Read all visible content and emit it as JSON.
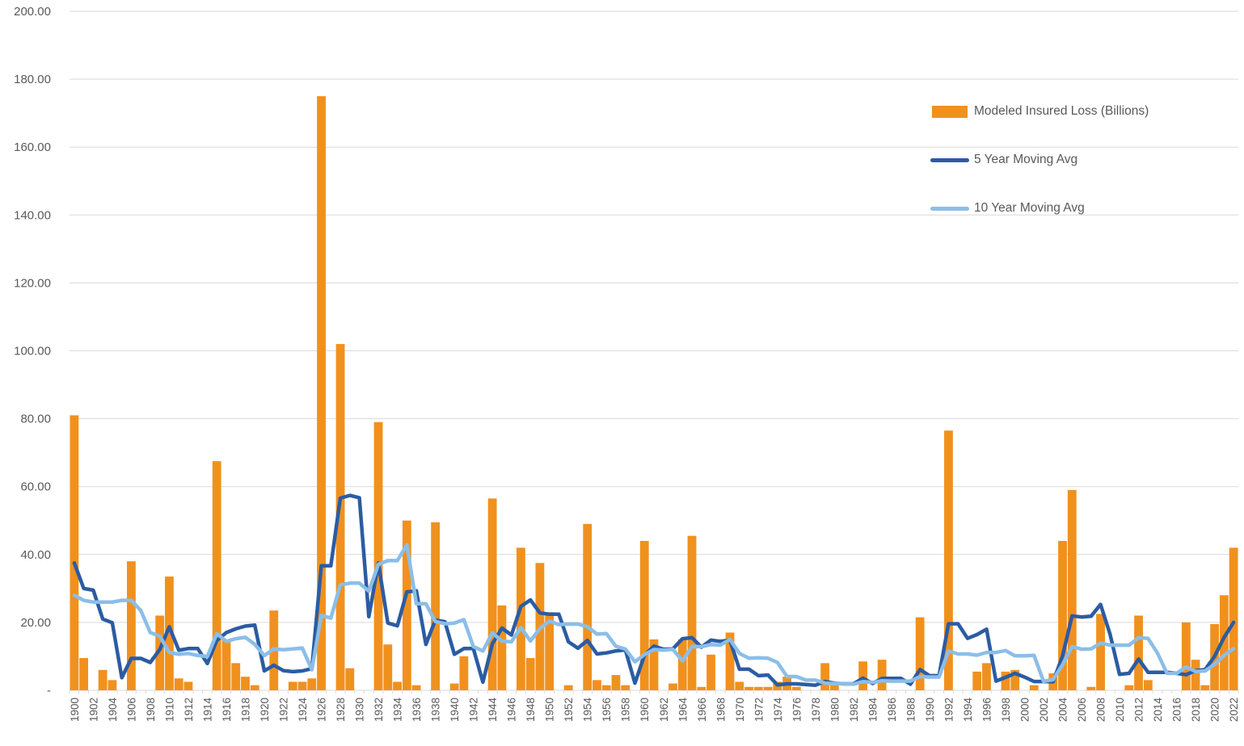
{
  "chart_data": {
    "type": "bar",
    "subtype": "combo-bar-line",
    "title": "",
    "xlabel": "",
    "ylabel": "",
    "x_start_year": 1900,
    "x_end_year": 2022,
    "categories_tick_labels": [
      "1900",
      "1902",
      "1904",
      "1906",
      "1908",
      "1910",
      "1912",
      "1914",
      "1916",
      "1918",
      "1920",
      "1922",
      "1924",
      "1926",
      "1928",
      "1930",
      "1932",
      "1934",
      "1936",
      "1938",
      "1940",
      "1942",
      "1944",
      "1946",
      "1948",
      "1950",
      "1952",
      "1954",
      "1956",
      "1958",
      "1960",
      "1962",
      "1964",
      "1966",
      "1968",
      "1970",
      "1972",
      "1974",
      "1976",
      "1978",
      "1980",
      "1982",
      "1984",
      "1986",
      "1988",
      "1990",
      "1992",
      "1994",
      "1996",
      "1998",
      "2000",
      "2002",
      "2004",
      "2006",
      "2008",
      "2010",
      "2012",
      "2014",
      "2016",
      "2018",
      "2020",
      "2022"
    ],
    "series": [
      {
        "name": "Modeled Insured Loss (Billions)",
        "type": "bar",
        "color": "#F0911E",
        "values": [
          81,
          9.5,
          0,
          6,
          3,
          0,
          38,
          0,
          0,
          22,
          33.5,
          3.5,
          2.5,
          0,
          0,
          67.5,
          15,
          8,
          4,
          1.5,
          0,
          23.5,
          0,
          2.5,
          2.5,
          3.5,
          175,
          0,
          102,
          6.5,
          0,
          0,
          79,
          13.5,
          2.5,
          50,
          1.5,
          0,
          49.5,
          0,
          2,
          10,
          0,
          0,
          56.5,
          25,
          0,
          42,
          9.5,
          37.5,
          23,
          0,
          1.5,
          0,
          49,
          3,
          1.5,
          4.5,
          1.5,
          0,
          44,
          15,
          0,
          2,
          15,
          45.5,
          1,
          10.5,
          0,
          17,
          2.5,
          1,
          1,
          1,
          2.5,
          4,
          1,
          0,
          0,
          8,
          1.5,
          0,
          0,
          8.5,
          0,
          9,
          0,
          0,
          0,
          21.5,
          0,
          0,
          76.5,
          0,
          0,
          5.5,
          8,
          0,
          5.5,
          6,
          0,
          1.5,
          0,
          5,
          44,
          59,
          0,
          1,
          22.5,
          0,
          0,
          1.5,
          22,
          3,
          0,
          0,
          0,
          20,
          9,
          1.5,
          19.5,
          28,
          42
        ]
      },
      {
        "name": "5 Year Moving Avg",
        "type": "line",
        "color": "#2B5CA3",
        "window": 5,
        "derivation": "trailing moving average of bar series",
        "visible_leadin_values": [
          37.5,
          30,
          29.5,
          21
        ]
      },
      {
        "name": "10 Year Moving Avg",
        "type": "line",
        "color": "#8BBEE8",
        "window": 10,
        "derivation": "trailing moving average of bar series",
        "visible_leadin_values": [
          28,
          26.5,
          26,
          26,
          26,
          26.5,
          26.5,
          23.5,
          17
        ]
      }
    ],
    "y_axis": {
      "min": 0,
      "max": 200,
      "step": 20,
      "tick_labels": [
        "-",
        "20.00",
        "40.00",
        "60.00",
        "80.00",
        "100.00",
        "120.00",
        "140.00",
        "160.00",
        "180.00",
        "200.00"
      ]
    },
    "x_axis": {
      "label_every_years": 2,
      "label_rotation_degrees": 90
    },
    "grid": "horizontal",
    "legend_position": "upper-right-inside"
  },
  "colors": {
    "bar_orange": "#F0911E",
    "line_dark_blue": "#2B5CA3",
    "line_light_blue": "#8BBEE8",
    "gridline": "#D9D9D9",
    "axis_text": "#595959"
  }
}
